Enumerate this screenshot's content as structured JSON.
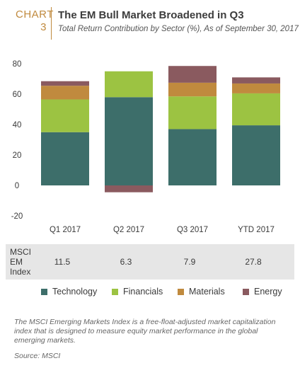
{
  "header": {
    "chart_word": "CHART",
    "chart_number": "3",
    "title": "The EM Bull Market Broadened in Q3",
    "subtitle": "Total Return Contribution by Sector (%), As of September 30, 2017"
  },
  "colors": {
    "accent": "#c08a3e",
    "technology": "#3d6e6a",
    "financials": "#9cc342",
    "materials": "#c08a3e",
    "energy": "#8a5a5f",
    "index_band": "#e6e6e6"
  },
  "chart_data": {
    "type": "bar",
    "stacked": true,
    "categories": [
      "Q1 2017",
      "Q2 2017",
      "Q3 2017",
      "YTD 2017"
    ],
    "series": [
      {
        "name": "Technology",
        "color": "#3d6e6a",
        "values": [
          35,
          58,
          37,
          39.5
        ]
      },
      {
        "name": "Financials",
        "color": "#9cc342",
        "values": [
          21.5,
          17,
          21.5,
          21
        ]
      },
      {
        "name": "Materials",
        "color": "#c08a3e",
        "values": [
          9,
          0,
          9,
          6.5
        ]
      },
      {
        "name": "Energy",
        "color": "#8a5a5f",
        "values": [
          3,
          -4.5,
          11,
          4
        ]
      }
    ],
    "yticks": [
      "80",
      "60",
      "40",
      "20",
      "0",
      "-20"
    ],
    "ylim": [
      -20,
      80
    ],
    "grid": false,
    "legend_position": "bottom"
  },
  "index_row": {
    "label_lines": [
      "MSCI",
      "EM",
      "Index"
    ],
    "values": [
      "11.5",
      "6.3",
      "7.9",
      "27.8"
    ]
  },
  "footnote": "The MSCI Emerging Markets Index is a free-float-adjusted market capitalization index that is designed to measure equity market performance in the global emerging markets.",
  "source": "Source: MSCI"
}
